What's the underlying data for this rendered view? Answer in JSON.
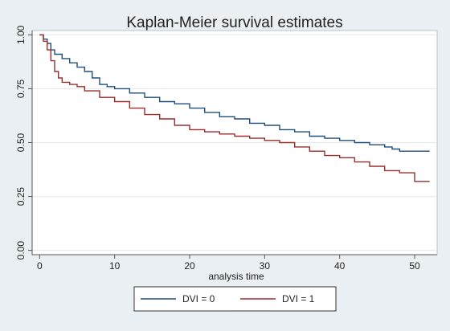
{
  "chart_data": {
    "type": "line",
    "title": "Kaplan-Meier survival estimates",
    "xlabel": "analysis time",
    "ylabel": "",
    "xlim": [
      -1,
      53
    ],
    "ylim": [
      -0.02,
      1.02
    ],
    "xticks": [
      0,
      10,
      20,
      30,
      40,
      50
    ],
    "yticks": [
      0,
      0.25,
      0.5,
      0.75,
      1
    ],
    "ytick_labels": [
      "0.00",
      "0.25",
      "0.50",
      "0.75",
      "1.00"
    ],
    "grid": "horizontal",
    "legend_position": "bottom",
    "series": [
      {
        "name": "DVI = 0",
        "color": "#1f4e79",
        "x": [
          0,
          0.5,
          1,
          1.5,
          2,
          3,
          4,
          5,
          6,
          7,
          8,
          9,
          10,
          12,
          14,
          16,
          18,
          20,
          22,
          24,
          26,
          28,
          30,
          32,
          34,
          36,
          38,
          40,
          42,
          44,
          46,
          47,
          48,
          50,
          52
        ],
        "y": [
          1.0,
          0.98,
          0.96,
          0.93,
          0.91,
          0.89,
          0.87,
          0.85,
          0.83,
          0.8,
          0.77,
          0.76,
          0.75,
          0.73,
          0.71,
          0.69,
          0.68,
          0.66,
          0.64,
          0.62,
          0.61,
          0.59,
          0.58,
          0.56,
          0.55,
          0.53,
          0.52,
          0.51,
          0.5,
          0.49,
          0.48,
          0.47,
          0.46,
          0.46,
          0.46
        ]
      },
      {
        "name": "DVI = 1",
        "color": "#9b2d2d",
        "x": [
          0,
          0.5,
          1,
          1.5,
          2,
          2.5,
          3,
          4,
          5,
          6,
          8,
          10,
          12,
          14,
          16,
          18,
          20,
          22,
          24,
          26,
          28,
          30,
          32,
          34,
          36,
          38,
          40,
          42,
          44,
          46,
          48,
          50,
          52
        ],
        "y": [
          1.0,
          0.97,
          0.93,
          0.88,
          0.83,
          0.8,
          0.78,
          0.77,
          0.76,
          0.74,
          0.71,
          0.69,
          0.66,
          0.63,
          0.61,
          0.58,
          0.56,
          0.55,
          0.54,
          0.53,
          0.52,
          0.51,
          0.5,
          0.48,
          0.46,
          0.44,
          0.43,
          0.41,
          0.39,
          0.37,
          0.36,
          0.32,
          0.32
        ]
      }
    ]
  }
}
